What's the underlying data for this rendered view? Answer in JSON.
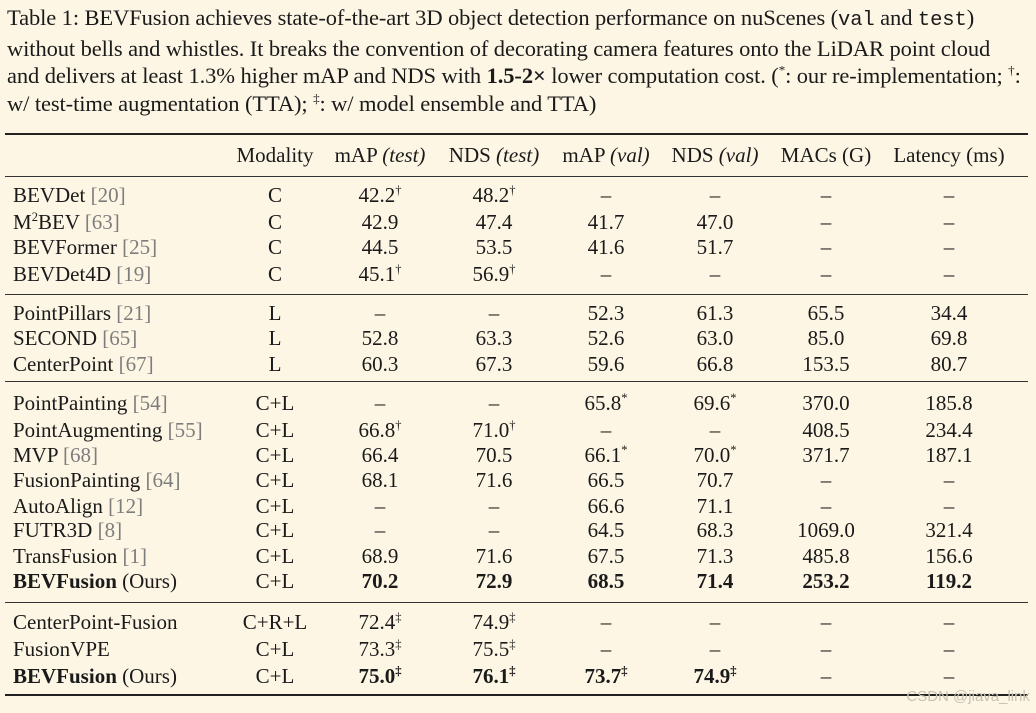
{
  "caption": {
    "label": "Table 1:",
    "text_1": "BEVFusion achieves state-of-the-art 3D object detection performance on nuScenes (",
    "code_val": "val",
    "text_2": " and ",
    "code_test": "test",
    "text_3": ") without bells and whistles. It breaks the convention of decorating camera features onto the LiDAR point cloud and delivers at least 1.3% higher mAP and NDS with ",
    "bold_speed": "1.5-2×",
    "text_4": " lower computation cost. (",
    "sym_star": "*",
    "text_5": ": our re-implementation; ",
    "sym_dagger": "†",
    "text_6": ": w/ test-time augmentation (TTA); ",
    "sym_ddagger": "‡",
    "text_7": ": w/ model ensemble and TTA)"
  },
  "header": {
    "modality": "Modality",
    "map": "mAP",
    "nds": "NDS",
    "test": "(test)",
    "val": "(val)",
    "macs": "MACs (G)",
    "latency": "Latency (ms)"
  },
  "dash": "–",
  "rows": [
    {
      "name": "BEVDet",
      "ref": "[20]",
      "mod": "C",
      "map_test": "42.2",
      "map_test_sup": "†",
      "nds_test": "48.2",
      "nds_test_sup": "†",
      "map_val": "–",
      "nds_val": "–",
      "macs": "–",
      "latency": "–"
    },
    {
      "name": "M",
      "name_sup": "2",
      "name_rest": "BEV",
      "ref": "[63]",
      "mod": "C",
      "map_test": "42.9",
      "nds_test": "47.4",
      "map_val": "41.7",
      "nds_val": "47.0",
      "macs": "–",
      "latency": "–"
    },
    {
      "name": "BEVFormer",
      "ref": "[25]",
      "mod": "C",
      "map_test": "44.5",
      "nds_test": "53.5",
      "map_val": "41.6",
      "nds_val": "51.7",
      "macs": "–",
      "latency": "–"
    },
    {
      "name": "BEVDet4D",
      "ref": "[19]",
      "mod": "C",
      "map_test": "45.1",
      "map_test_sup": "†",
      "nds_test": "56.9",
      "nds_test_sup": "†",
      "map_val": "–",
      "nds_val": "–",
      "macs": "–",
      "latency": "–"
    },
    {
      "name": "PointPillars",
      "ref": "[21]",
      "mod": "L",
      "map_test": "–",
      "nds_test": "–",
      "map_val": "52.3",
      "nds_val": "61.3",
      "macs": "65.5",
      "latency": "34.4"
    },
    {
      "name": "SECOND",
      "ref": "[65]",
      "mod": "L",
      "map_test": "52.8",
      "nds_test": "63.3",
      "map_val": "52.6",
      "nds_val": "63.0",
      "macs": "85.0",
      "latency": "69.8"
    },
    {
      "name": "CenterPoint",
      "ref": "[67]",
      "mod": "L",
      "map_test": "60.3",
      "nds_test": "67.3",
      "map_val": "59.6",
      "nds_val": "66.8",
      "macs": "153.5",
      "latency": "80.7"
    },
    {
      "name": "PointPainting",
      "ref": "[54]",
      "mod": "C+L",
      "map_test": "–",
      "nds_test": "–",
      "map_val": "65.8",
      "map_val_sup": "*",
      "nds_val": "69.6",
      "nds_val_sup": "*",
      "macs": "370.0",
      "latency": "185.8"
    },
    {
      "name": "PointAugmenting",
      "ref": "[55]",
      "mod": "C+L",
      "map_test": "66.8",
      "map_test_sup": "†",
      "nds_test": "71.0",
      "nds_test_sup": "†",
      "map_val": "–",
      "nds_val": "–",
      "macs": "408.5",
      "latency": "234.4"
    },
    {
      "name": "MVP",
      "ref": "[68]",
      "mod": "C+L",
      "map_test": "66.4",
      "nds_test": "70.5",
      "map_val": "66.1",
      "map_val_sup": "*",
      "nds_val": "70.0",
      "nds_val_sup": "*",
      "macs": "371.7",
      "latency": "187.1"
    },
    {
      "name": "FusionPainting",
      "ref": "[64]",
      "mod": "C+L",
      "map_test": "68.1",
      "nds_test": "71.6",
      "map_val": "66.5",
      "nds_val": "70.7",
      "macs": "–",
      "latency": "–"
    },
    {
      "name": "AutoAlign",
      "ref": "[12]",
      "mod": "C+L",
      "map_test": "–",
      "nds_test": "–",
      "map_val": "66.6",
      "nds_val": "71.1",
      "macs": "–",
      "latency": "–"
    },
    {
      "name": "FUTR3D",
      "ref": "[8]",
      "mod": "C+L",
      "map_test": "–",
      "nds_test": "–",
      "map_val": "64.5",
      "nds_val": "68.3",
      "macs": "1069.0",
      "latency": "321.4"
    },
    {
      "name": "TransFusion",
      "ref": "[1]",
      "mod": "C+L",
      "map_test": "68.9",
      "nds_test": "71.6",
      "map_val": "67.5",
      "nds_val": "71.3",
      "macs": "485.8",
      "latency": "156.6"
    },
    {
      "name": "BEVFusion",
      "suffix": "(Ours)",
      "bold": true,
      "mod": "C+L",
      "map_test": "70.2",
      "nds_test": "72.9",
      "map_val": "68.5",
      "nds_val": "71.4",
      "macs": "253.2",
      "latency": "119.2"
    },
    {
      "name": "CenterPoint-Fusion",
      "mod": "C+R+L",
      "map_test": "72.4",
      "map_test_sup": "‡",
      "nds_test": "74.9",
      "nds_test_sup": "‡",
      "map_val": "–",
      "nds_val": "–",
      "macs": "–",
      "latency": "–"
    },
    {
      "name": "FusionVPE",
      "mod": "C+L",
      "map_test": "73.3",
      "map_test_sup": "‡",
      "nds_test": "75.5",
      "nds_test_sup": "‡",
      "map_val": "–",
      "nds_val": "–",
      "macs": "–",
      "latency": "–"
    },
    {
      "name": "BEVFusion",
      "suffix": "(Ours)",
      "bold": true,
      "mod": "C+L",
      "map_test": "75.0",
      "map_test_sup": "‡",
      "nds_test": "76.1",
      "nds_test_sup": "‡",
      "map_val": "73.7",
      "map_val_sup": "‡",
      "nds_val": "74.9",
      "nds_val_sup": "‡",
      "macs": "–",
      "latency": "–"
    }
  ],
  "watermark": "CSDN @jiava_link"
}
